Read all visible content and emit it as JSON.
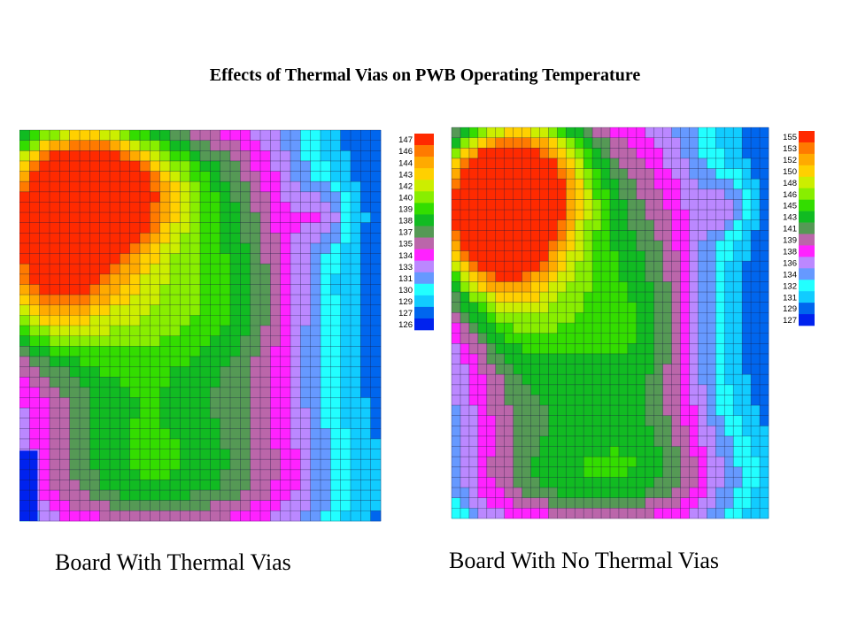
{
  "title": "Effects of Thermal Vias on PWB Operating Temperature",
  "chart_data": [
    {
      "type": "heatmap",
      "caption": "Board With Thermal Vias",
      "legend_labels": [
        "147",
        "146",
        "144",
        "143",
        "142",
        "140",
        "139",
        "138",
        "137",
        "135",
        "134",
        "133",
        "131",
        "130",
        "129",
        "127",
        "126"
      ],
      "legend_colors": [
        "#ff2a00",
        "#ff7a00",
        "#ffaa00",
        "#ffd000",
        "#ccee00",
        "#88ee00",
        "#33dd00",
        "#11bb22",
        "#559955",
        "#bb66aa",
        "#ff22ff",
        "#bb88ff",
        "#6699ff",
        "#22ffff",
        "#11ccff",
        "#0066ee",
        "#0022ee"
      ],
      "hotspot_value": 147,
      "grid": true
    },
    {
      "type": "heatmap",
      "caption": "Board With No Thermal Vias",
      "legend_labels": [
        "155",
        "153",
        "152",
        "150",
        "148",
        "146",
        "145",
        "143",
        "141",
        "139",
        "138",
        "136",
        "134",
        "132",
        "131",
        "129",
        "127"
      ],
      "legend_colors": [
        "#ff2a00",
        "#ff7a00",
        "#ffaa00",
        "#ffd000",
        "#ccee00",
        "#88ee00",
        "#33dd00",
        "#11bb22",
        "#559955",
        "#bb66aa",
        "#ff22ff",
        "#bb88ff",
        "#6699ff",
        "#22ffff",
        "#11ccff",
        "#0066ee",
        "#0022ee"
      ],
      "hotspot_value": 155,
      "grid": true
    }
  ]
}
